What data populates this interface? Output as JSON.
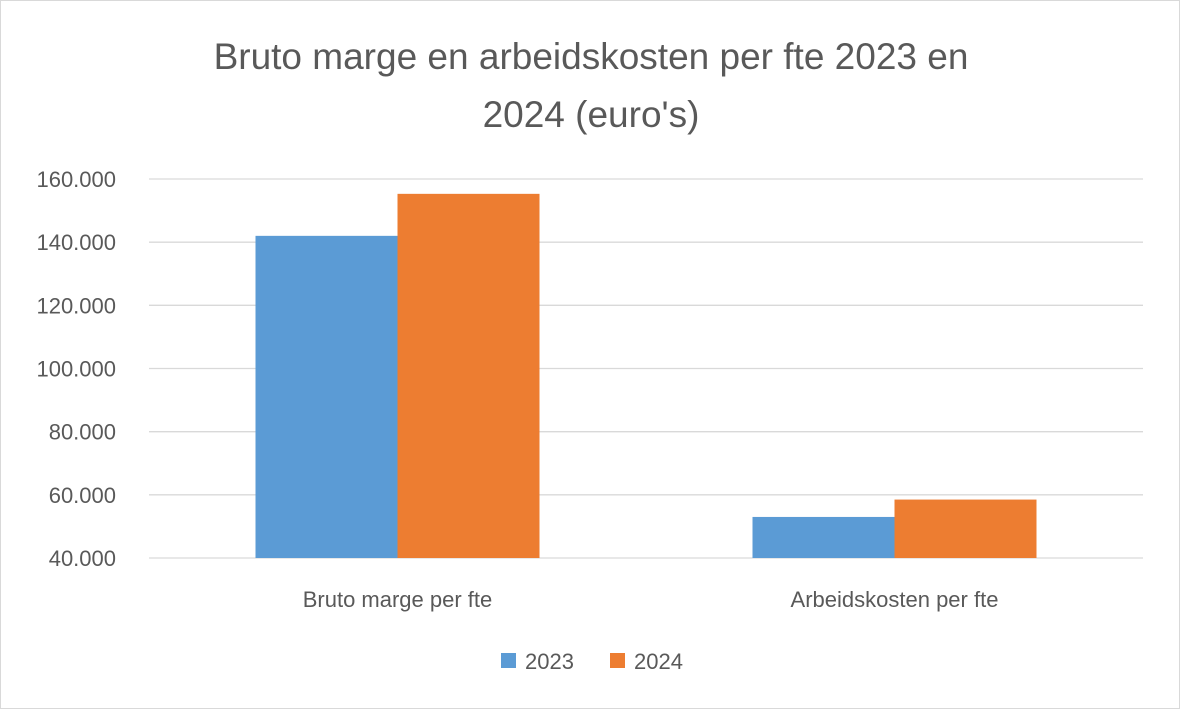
{
  "chart_data": {
    "type": "bar",
    "title_lines": [
      "Bruto marge en arbeidskosten per fte 2023 en",
      "2024 (euro's)"
    ],
    "categories": [
      "Bruto marge per fte",
      "Arbeidskosten per fte"
    ],
    "series": [
      {
        "name": "2023",
        "color": "#5b9bd5",
        "values": [
          142000,
          53000
        ]
      },
      {
        "name": "2024",
        "color": "#ed7d31",
        "values": [
          155300,
          58500
        ]
      }
    ],
    "ylim": [
      40000,
      160000
    ],
    "y_ticks": [
      40000,
      60000,
      80000,
      100000,
      120000,
      140000,
      160000
    ],
    "y_tick_labels": [
      "40.000",
      "60.000",
      "80.000",
      "100.000",
      "120.000",
      "140.000",
      "160.000"
    ],
    "gridlines": true,
    "gridline_color": "#d9d9d9",
    "legend_position": "bottom"
  }
}
